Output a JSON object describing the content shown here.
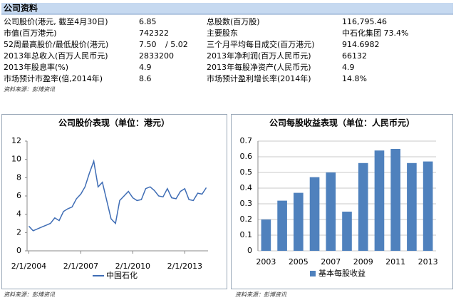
{
  "table": {
    "title": "公司资料",
    "rows": [
      [
        "公司股价(港元, 截至4月30日)",
        "6.85",
        "总股数(百万股)",
        "116,795.46"
      ],
      [
        "市值(百万港元)",
        "742322",
        "主要股东",
        "中石化集团 73.4%"
      ],
      [
        "52周最高股价/最低股价(港元)",
        "7.50",
        "/ 5.02",
        "三个月平均每日成交(百万港元)",
        "914.6982"
      ],
      [
        "2013年总收入(百万人民币元)",
        "2833200",
        "2013年净利润(百万人民币元)",
        "66132"
      ],
      [
        "2013年股息率(%)",
        "4.9",
        "2013年每股净资产(人民币元)",
        "4.9"
      ],
      [
        "市场预计市盈率(倍,2014年)",
        "8.6",
        "市场预计盈利增长率(2014年)",
        "14.8%"
      ]
    ],
    "source": "资料来源：彭博资讯"
  },
  "chart_data": [
    {
      "type": "line",
      "title": "公司股价表现（单位：港元）",
      "source": "资料来源：彭博资讯",
      "x": [
        "2/1/2004",
        "5/1/2004",
        "8/1/2004",
        "11/1/2004",
        "2/1/2005",
        "5/1/2005",
        "8/1/2005",
        "11/1/2005",
        "2/1/2006",
        "5/1/2006",
        "8/1/2006",
        "11/1/2006",
        "2/1/2007",
        "5/1/2007",
        "8/1/2007",
        "11/1/2007",
        "2/1/2008",
        "5/1/2008",
        "8/1/2008",
        "11/1/2008",
        "2/1/2009",
        "5/1/2009",
        "8/1/2009",
        "11/1/2009",
        "2/1/2010",
        "5/1/2010",
        "8/1/2010",
        "11/1/2010",
        "2/1/2011",
        "5/1/2011",
        "8/1/2011",
        "11/1/2011",
        "2/1/2012",
        "5/1/2012",
        "8/1/2012",
        "11/1/2012",
        "2/1/2013",
        "5/1/2013",
        "8/1/2013",
        "11/1/2013",
        "2/1/2014",
        "5/1/2014"
      ],
      "series": [
        {
          "name": "中国石化",
          "color": "#3f6db5",
          "values": [
            2.7,
            2.2,
            2.4,
            2.6,
            2.8,
            3.0,
            3.6,
            3.3,
            4.3,
            4.6,
            4.8,
            5.7,
            6.2,
            7.0,
            8.5,
            9.8,
            7.0,
            7.5,
            5.5,
            3.5,
            3.0,
            5.5,
            6.0,
            6.5,
            5.8,
            5.5,
            5.6,
            6.8,
            7.0,
            6.6,
            6.0,
            5.9,
            6.8,
            5.8,
            5.7,
            6.5,
            6.8,
            5.6,
            5.5,
            6.3,
            6.2,
            6.9
          ]
        }
      ],
      "ylim": [
        0,
        12
      ],
      "yticks": [
        0,
        2,
        4,
        6,
        8,
        10,
        12
      ],
      "xticks": [
        "2/1/2004",
        "2/1/2007",
        "2/1/2010",
        "2/1/2013"
      ],
      "grid": false
    },
    {
      "type": "bar",
      "title": "公司每股收益表现（单位：人民币元）",
      "source": "资料来源：彭博资讯",
      "categories": [
        "2003",
        null,
        "2005",
        null,
        "2007",
        null,
        "2009",
        null,
        "2011",
        null,
        "2013"
      ],
      "series": [
        {
          "name": "基本每股收益",
          "color": "#4f81bd",
          "values": [
            0.2,
            0.32,
            0.37,
            0.47,
            0.5,
            0.25,
            0.56,
            0.64,
            0.65,
            0.56,
            0.57
          ]
        }
      ],
      "ylim": [
        0,
        0.7
      ],
      "yticks": [
        0,
        0.1,
        0.2,
        0.3,
        0.4,
        0.5,
        0.6,
        0.7
      ],
      "grid": true
    }
  ]
}
